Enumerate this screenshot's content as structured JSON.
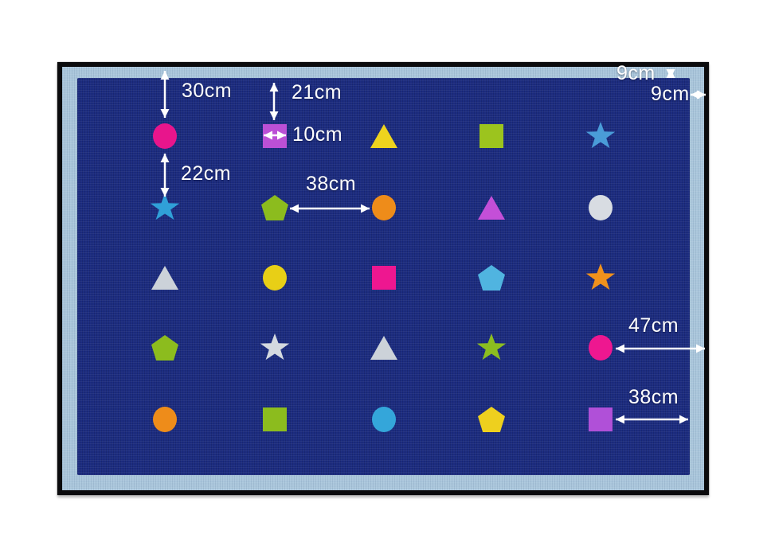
{
  "scene": {
    "description_colors": {
      "page_background": "#ffffff",
      "rug_border_band": "#aac6db",
      "rug_field": "#1c2c80",
      "rug_frame": "#0b0b0d",
      "annotation_text": "#ffffff"
    }
  },
  "rug": {
    "grid": {
      "rows": 5,
      "cols": 5,
      "shapes": [
        [
          {
            "shape": "circle",
            "color": "#e8158c"
          },
          {
            "shape": "square",
            "color": "#bb50d6"
          },
          {
            "shape": "triangle",
            "color": "#eed31e"
          },
          {
            "shape": "square",
            "color": "#9cc41e"
          },
          {
            "shape": "star",
            "color": "#4a9cd8"
          }
        ],
        [
          {
            "shape": "star",
            "color": "#30a0d8"
          },
          {
            "shape": "pentagon",
            "color": "#8cbc1e"
          },
          {
            "shape": "circle",
            "color": "#ee8c1a"
          },
          {
            "shape": "triangle",
            "color": "#c44fd8"
          },
          {
            "shape": "circle",
            "color": "#d8dce2"
          }
        ],
        [
          {
            "shape": "triangle",
            "color": "#ccd2d9"
          },
          {
            "shape": "circle",
            "color": "#e8cf16"
          },
          {
            "shape": "square",
            "color": "#ee1790"
          },
          {
            "shape": "pentagon",
            "color": "#50b4e0"
          },
          {
            "shape": "star",
            "color": "#f0911c"
          }
        ],
        [
          {
            "shape": "pentagon",
            "color": "#8cbc1e"
          },
          {
            "shape": "star",
            "color": "#d4d9e0"
          },
          {
            "shape": "triangle",
            "color": "#ccd2d9"
          },
          {
            "shape": "star",
            "color": "#8cbe20"
          },
          {
            "shape": "circle",
            "color": "#ee1790"
          }
        ],
        [
          {
            "shape": "circle",
            "color": "#ee8c1a"
          },
          {
            "shape": "square",
            "color": "#8cbc1e"
          },
          {
            "shape": "circle",
            "color": "#34a6da"
          },
          {
            "shape": "pentagon",
            "color": "#eed01e"
          },
          {
            "shape": "square",
            "color": "#b050d8"
          }
        ]
      ]
    }
  },
  "annotations": {
    "gap_top_to_circle": {
      "label": "30cm"
    },
    "gap_top_to_square": {
      "label": "21cm"
    },
    "square_width": {
      "label": "10cm"
    },
    "gap_circle_to_star": {
      "label": "22cm"
    },
    "gap_pentagon_to_circle": {
      "label": "38cm"
    },
    "border_height": {
      "label": "9cm"
    },
    "border_width": {
      "label": "9cm"
    },
    "gap_circle_to_edge": {
      "label": "47cm"
    },
    "gap_square_to_edge": {
      "label": "38cm"
    }
  }
}
